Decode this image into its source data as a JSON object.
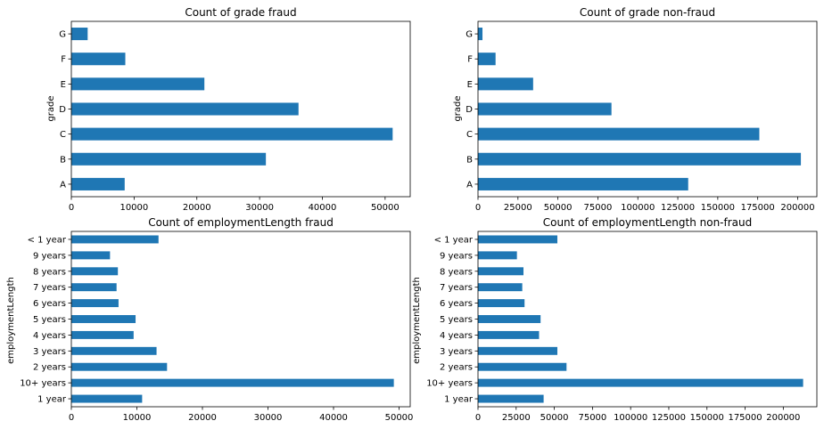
{
  "bar_color": "#1f77b4",
  "chart_data": [
    {
      "type": "bar",
      "orientation": "horizontal",
      "title": "Count of grade fraud",
      "ylabel": "grade",
      "xlabel": "",
      "categories": [
        "A",
        "B",
        "C",
        "D",
        "E",
        "F",
        "G"
      ],
      "values": [
        8500,
        31000,
        51200,
        36200,
        21200,
        8600,
        2600
      ],
      "xlim": [
        0,
        54000
      ],
      "xticks": [
        0,
        10000,
        20000,
        30000,
        40000,
        50000
      ],
      "grid": false
    },
    {
      "type": "bar",
      "orientation": "horizontal",
      "title": "Count of grade non-fraud",
      "ylabel": "grade",
      "xlabel": "",
      "categories": [
        "A",
        "B",
        "C",
        "D",
        "E",
        "F",
        "G"
      ],
      "values": [
        131500,
        202000,
        176000,
        83500,
        34500,
        11000,
        2800
      ],
      "xlim": [
        0,
        212000
      ],
      "xticks": [
        0,
        25000,
        50000,
        75000,
        100000,
        125000,
        150000,
        175000,
        200000
      ],
      "grid": false
    },
    {
      "type": "bar",
      "orientation": "horizontal",
      "title": "Count of employmentLength fraud",
      "ylabel": "employmentLength",
      "xlabel": "",
      "categories": [
        "1 year",
        "10+ years",
        "2 years",
        "3 years",
        "4 years",
        "5 years",
        "6 years",
        "7 years",
        "8 years",
        "9 years",
        "< 1 year"
      ],
      "values": [
        10800,
        49200,
        14600,
        13000,
        9500,
        9800,
        7200,
        6900,
        7100,
        5900,
        13300
      ],
      "xlim": [
        0,
        51700
      ],
      "xticks": [
        0,
        10000,
        20000,
        30000,
        40000,
        50000
      ],
      "grid": false
    },
    {
      "type": "bar",
      "orientation": "horizontal",
      "title": "Count of employmentLength non-fraud",
      "ylabel": "employmentLength",
      "xlabel": "",
      "categories": [
        "1 year",
        "10+ years",
        "2 years",
        "3 years",
        "4 years",
        "5 years",
        "6 years",
        "7 years",
        "8 years",
        "9 years",
        "< 1 year"
      ],
      "values": [
        43000,
        213000,
        58000,
        52000,
        40000,
        41000,
        30500,
        29000,
        29800,
        25500,
        52000
      ],
      "xlim": [
        0,
        222000
      ],
      "xticks": [
        0,
        25000,
        50000,
        75000,
        100000,
        125000,
        150000,
        175000,
        200000
      ],
      "grid": false
    }
  ]
}
